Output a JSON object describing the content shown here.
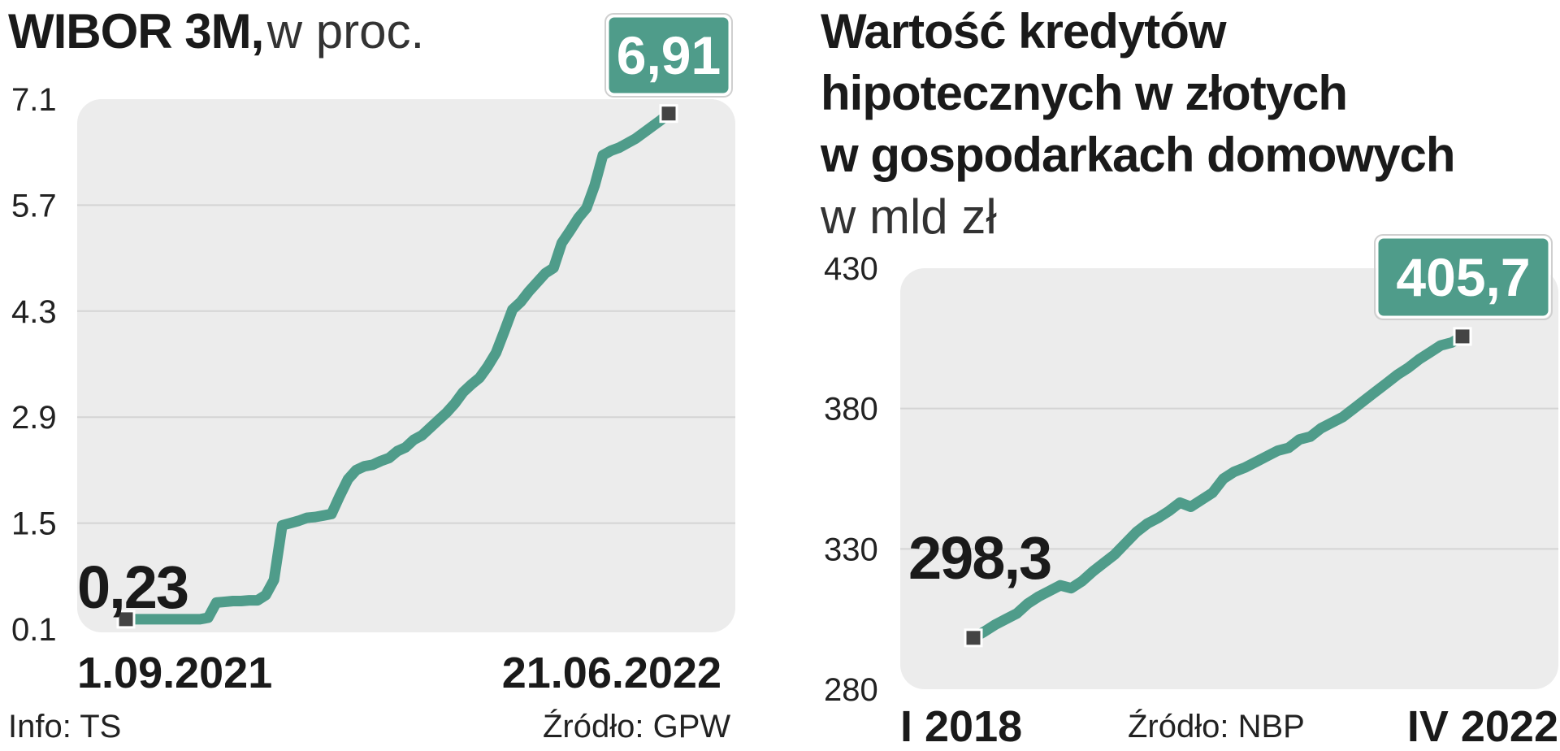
{
  "colors": {
    "line": "#4f9c8a",
    "badge": "#4f9c8a",
    "plot_bg": "#ececec",
    "grid": "#d4d4d4",
    "marker": "#444444"
  },
  "left": {
    "title_bold": "WIBOR 3M,",
    "title_light": "w proc.",
    "info": "Info: TS",
    "source": "Źródło: GPW",
    "start_callout": "0,23",
    "end_callout": "6,91",
    "x_start_label": "1.09.2021",
    "x_end_label": "21.06.2022"
  },
  "right": {
    "title_lines": [
      "Wartość kredytów",
      "hipotecznych w złotych",
      "w gospodarkach domowych"
    ],
    "subtitle": "w mld zł",
    "source": "Źródło: NBP",
    "start_callout": "298,3",
    "end_callout": "405,7",
    "x_start_label": "I 2018",
    "x_end_label": "IV 2022"
  },
  "chart_data": [
    {
      "type": "line",
      "title": "WIBOR 3M, w proc.",
      "yticks": [
        "7.1",
        "5.7",
        "4.3",
        "2.9",
        "1.5",
        "0.1"
      ],
      "ylim": [
        0.1,
        7.1
      ],
      "x_labels": [
        "1.09.2021",
        "21.06.2022"
      ],
      "grid": true,
      "series": [
        {
          "values": [
            0.23,
            0.23,
            0.23,
            0.23,
            0.23,
            0.23,
            0.23,
            0.23,
            0.23,
            0.23,
            0.25,
            0.45,
            0.46,
            0.47,
            0.47,
            0.48,
            0.48,
            0.55,
            0.75,
            1.47,
            1.5,
            1.53,
            1.57,
            1.58,
            1.6,
            1.62,
            1.86,
            2.08,
            2.2,
            2.25,
            2.27,
            2.32,
            2.36,
            2.45,
            2.5,
            2.6,
            2.66,
            2.76,
            2.86,
            2.96,
            3.08,
            3.23,
            3.33,
            3.42,
            3.57,
            3.75,
            4.03,
            4.32,
            4.42,
            4.56,
            4.68,
            4.8,
            4.87,
            5.2,
            5.36,
            5.53,
            5.66,
            5.96,
            6.36,
            6.42,
            6.46,
            6.52,
            6.58,
            6.66,
            6.74,
            6.82,
            6.91
          ]
        }
      ]
    },
    {
      "type": "line",
      "title": "Wartość kredytów hipotecznych w złotych w gospodarkach domowych, w mld zł",
      "yticks": [
        "430",
        "380",
        "330",
        "280"
      ],
      "ylim": [
        280,
        430
      ],
      "x_labels": [
        "I 2018",
        "IV 2022"
      ],
      "grid": true,
      "series": [
        {
          "values": [
            298.3,
            300.5,
            303,
            305,
            307,
            310.5,
            313,
            315,
            317,
            316,
            318.5,
            322,
            325,
            328,
            332,
            336,
            339,
            341,
            343.5,
            346.5,
            345,
            347.5,
            350,
            355,
            357.5,
            359,
            361,
            363,
            365,
            366,
            369,
            370,
            373,
            375,
            377,
            380,
            383,
            386,
            389,
            392,
            394.5,
            397.5,
            400,
            402.5,
            403.5,
            405.7
          ]
        }
      ]
    }
  ]
}
